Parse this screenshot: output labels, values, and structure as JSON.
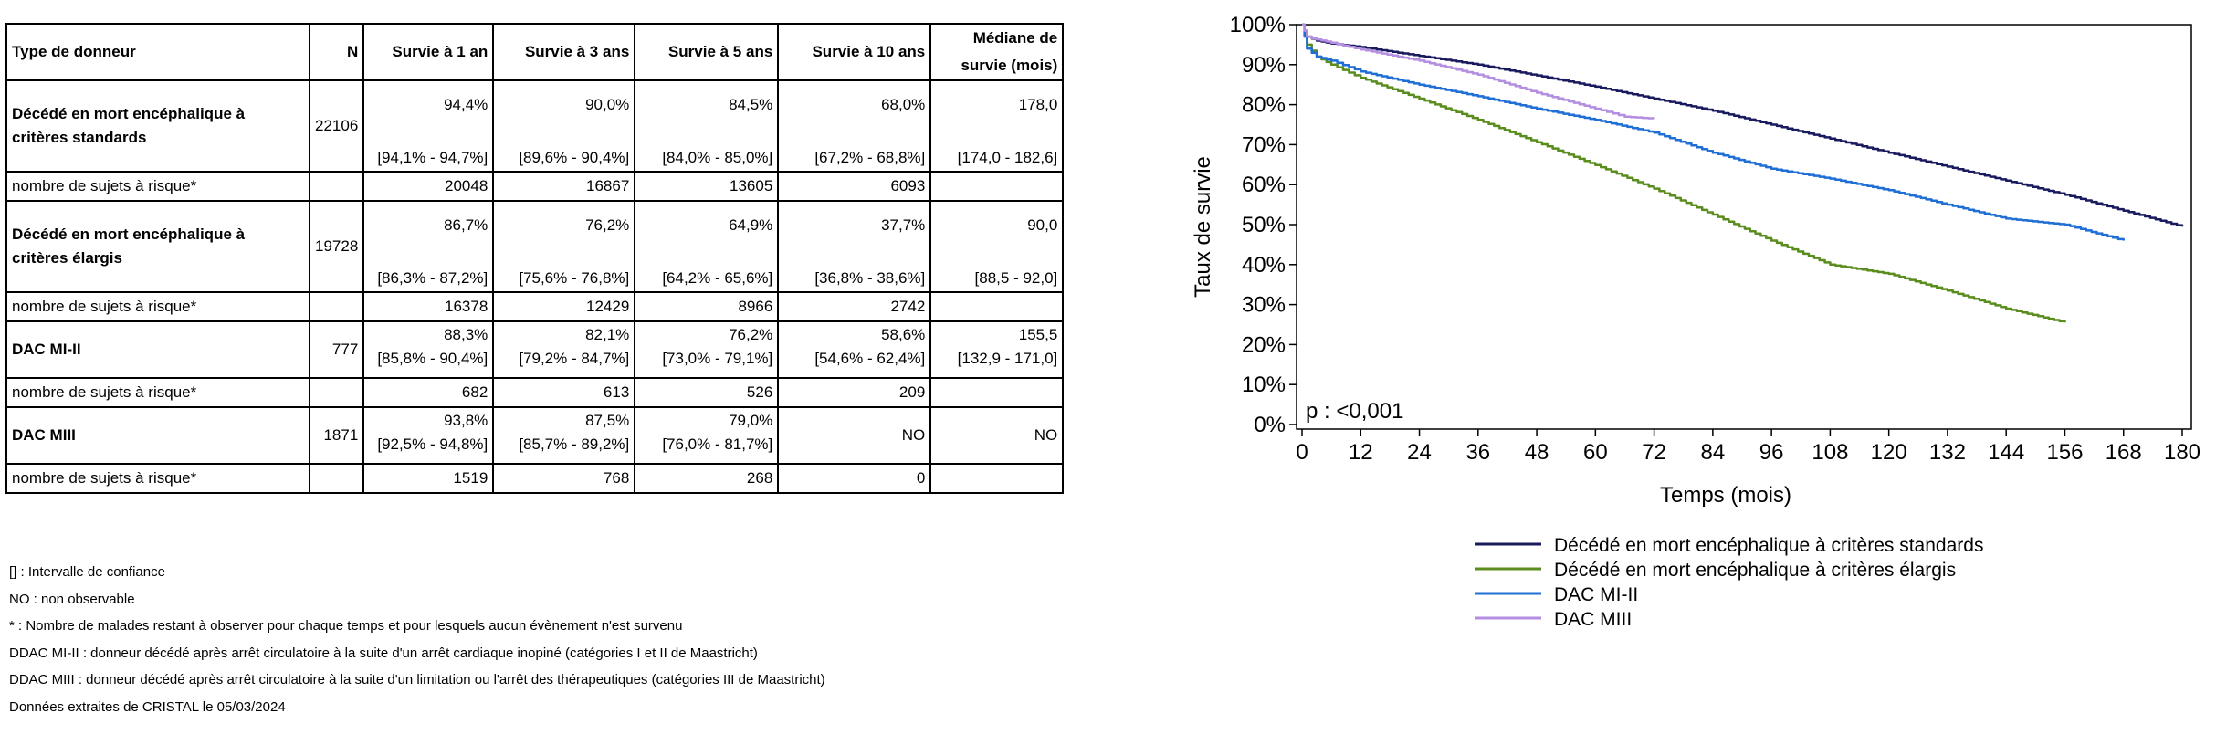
{
  "table": {
    "headers": {
      "type": "Type de donneur",
      "n": "N",
      "y1": "Survie à 1 an",
      "y3": "Survie à 3 ans",
      "y5": "Survie à 5 ans",
      "y10": "Survie à 10 ans",
      "median_l1": "Médiane de",
      "median_l2": "survie (mois)"
    },
    "risk_label": "nombre de sujets à risque*",
    "groups": [
      {
        "label": "Décédé en mort encéphalique à critères standards",
        "n": "22106",
        "y1": "94,4%",
        "y1_ci": "[94,1% - 94,7%]",
        "y3": "90,0%",
        "y3_ci": "[89,6% - 90,4%]",
        "y5": "84,5%",
        "y5_ci": "[84,0% - 85,0%]",
        "y10": "68,0%",
        "y10_ci": "[67,2% - 68,8%]",
        "median": "178,0",
        "median_ci": "[174,0 - 182,6]",
        "risk": [
          "20048",
          "16867",
          "13605",
          "6093"
        ]
      },
      {
        "label": "Décédé en mort encéphalique à critères élargis",
        "n": "19728",
        "y1": "86,7%",
        "y1_ci": "[86,3% - 87,2%]",
        "y3": "76,2%",
        "y3_ci": "[75,6% - 76,8%]",
        "y5": "64,9%",
        "y5_ci": "[64,2% - 65,6%]",
        "y10": "37,7%",
        "y10_ci": "[36,8% - 38,6%]",
        "median": "90,0",
        "median_ci": "[88,5 - 92,0]",
        "risk": [
          "16378",
          "12429",
          "8966",
          "2742"
        ]
      },
      {
        "label": "DAC MI-II",
        "n": "777",
        "y1": "88,3%",
        "y1_ci": "[85,8% - 90,4%]",
        "y3": "82,1%",
        "y3_ci": "[79,2% - 84,7%]",
        "y5": "76,2%",
        "y5_ci": "[73,0% - 79,1%]",
        "y10": "58,6%",
        "y10_ci": "[54,6% - 62,4%]",
        "median": "155,5",
        "median_ci": "[132,9 - 171,0]",
        "risk": [
          "682",
          "613",
          "526",
          "209"
        ]
      },
      {
        "label": "DAC MIII",
        "n": "1871",
        "y1": "93,8%",
        "y1_ci": "[92,5% - 94,8%]",
        "y3": "87,5%",
        "y3_ci": "[85,7% - 89,2%]",
        "y5": "79,0%",
        "y5_ci": "[76,0% - 81,7%]",
        "y10": "NO",
        "median": "NO",
        "risk": [
          "1519",
          "768",
          "268",
          "0"
        ]
      }
    ]
  },
  "notes": [
    "[] : Intervalle de confiance",
    "NO : non observable",
    "* : Nombre de malades restant à observer pour chaque temps et pour lesquels aucun évènement n'est survenu",
    "DDAC MI-II : donneur décédé après arrêt circulatoire à la suite d'un arrêt cardiaque inopiné (catégories I et II de Maastricht)",
    "DDAC MIII : donneur décédé après arrêt circulatoire à la suite d'un limitation ou l'arrêt des thérapeutiques (catégories III de Maastricht)",
    "Données extraites de CRISTAL le 05/03/2024"
  ],
  "chart_data": {
    "type": "line",
    "xlabel": "Temps (mois)",
    "ylabel": "Taux de survie",
    "xlim": [
      0,
      180
    ],
    "ylim": [
      0,
      100
    ],
    "xticks": [
      "0",
      "12",
      "24",
      "36",
      "48",
      "60",
      "72",
      "84",
      "96",
      "108",
      "120",
      "132",
      "144",
      "156",
      "168",
      "180"
    ],
    "yticks": [
      "0%",
      "10%",
      "20%",
      "30%",
      "40%",
      "50%",
      "60%",
      "70%",
      "80%",
      "90%",
      "100%"
    ],
    "annotation": "p : <0,001",
    "legend_position": "bottom",
    "grid": false,
    "series": [
      {
        "name": "Décédé en mort encéphalique à critères standards",
        "color": "#1a1a5e",
        "x": [
          0,
          1,
          3,
          6,
          12,
          24,
          36,
          48,
          60,
          72,
          84,
          96,
          108,
          120,
          132,
          144,
          156,
          168,
          180
        ],
        "y": [
          100,
          97,
          96,
          95.3,
          94.4,
          92.2,
          90.0,
          87.3,
          84.5,
          81.5,
          78.5,
          75.0,
          71.5,
          68.0,
          64.5,
          61.0,
          57.5,
          53.5,
          49.5
        ]
      },
      {
        "name": "Décédé en mort encéphalique à critères élargis",
        "color": "#5a8c1e",
        "x": [
          0,
          1,
          3,
          6,
          12,
          24,
          36,
          48,
          60,
          72,
          84,
          96,
          108,
          120,
          132,
          144,
          156
        ],
        "y": [
          100,
          95,
          92,
          90,
          86.7,
          81.5,
          76.2,
          70.6,
          64.9,
          59.0,
          52.5,
          46.0,
          40.0,
          37.7,
          33.5,
          29.0,
          25.5
        ]
      },
      {
        "name": "DAC MI-II",
        "color": "#1f6fd6",
        "x": [
          0,
          1,
          3,
          6,
          12,
          24,
          36,
          48,
          60,
          72,
          84,
          96,
          108,
          120,
          132,
          144,
          156,
          168
        ],
        "y": [
          100,
          94,
          92,
          91,
          88.3,
          85.0,
          82.1,
          79.0,
          76.2,
          73.0,
          68.0,
          64.0,
          61.5,
          58.6,
          55.0,
          51.5,
          50.0,
          46.0
        ]
      },
      {
        "name": "DAC MIII",
        "color": "#b48ee0",
        "x": [
          0,
          1,
          3,
          6,
          12,
          24,
          36,
          48,
          60,
          66,
          72
        ],
        "y": [
          100,
          97,
          96.3,
          95.5,
          93.8,
          91.0,
          87.5,
          83.0,
          79.0,
          77.0,
          76.5
        ]
      }
    ]
  }
}
